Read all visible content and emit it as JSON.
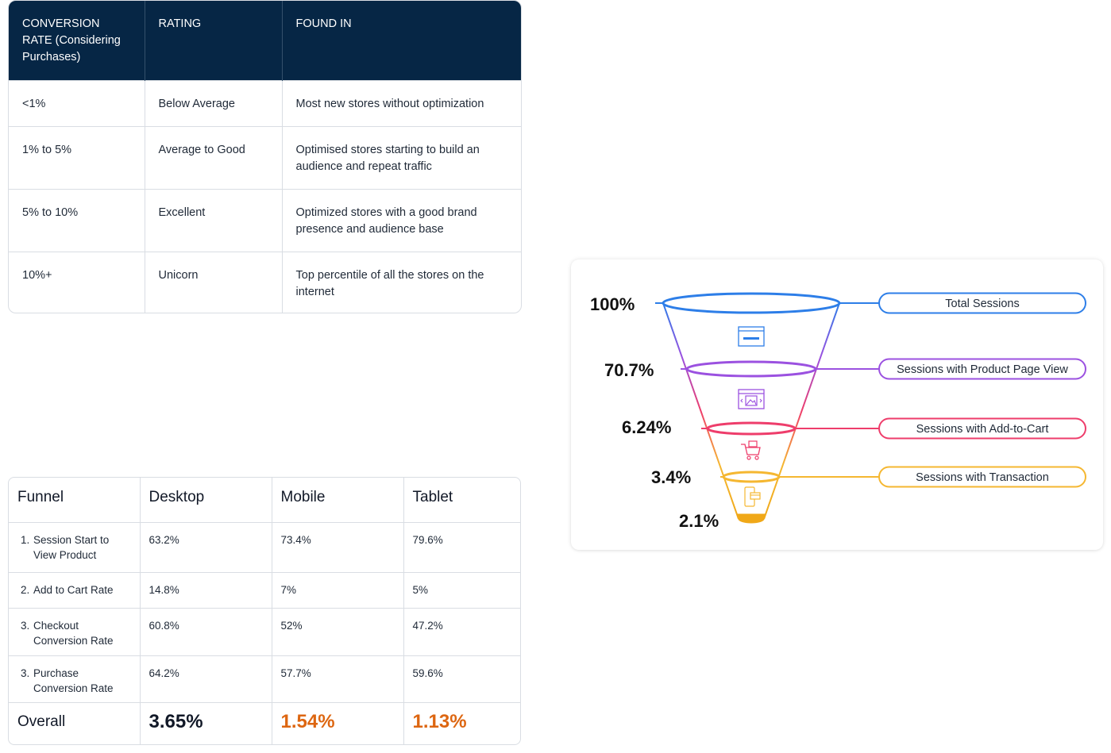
{
  "rates_table": {
    "headers": [
      "CONVERSION RATE (Considering Purchases)",
      "RATING",
      "FOUND IN"
    ],
    "rows": [
      {
        "rate": "<1%",
        "rating": "Below Average",
        "found_in": "Most new stores without optimization"
      },
      {
        "rate": "1% to 5%",
        "rating": "Average to Good",
        "found_in": "Optimised stores starting to build an audience and repeat traffic"
      },
      {
        "rate": "5% to 10%",
        "rating": "Excellent",
        "found_in": "Optimized stores with a good brand presence and audience base"
      },
      {
        "rate": "10%+",
        "rating": "Unicorn",
        "found_in": "Top percentile of all the stores on the internet"
      }
    ],
    "header_color": "#062645"
  },
  "funnel_table": {
    "headers": [
      "Funnel",
      "Desktop",
      "Mobile",
      "Tablet"
    ],
    "rows": [
      {
        "num": "1.",
        "stage": "Session Start to View Product",
        "desktop": "63.2%",
        "mobile": "73.4%",
        "tablet": "79.6%"
      },
      {
        "num": "2.",
        "stage": "Add to Cart Rate",
        "desktop": "14.8%",
        "mobile": "7%",
        "tablet": "5%"
      },
      {
        "num": "3.",
        "stage": "Checkout Conversion Rate",
        "desktop": "60.8%",
        "mobile": "52%",
        "tablet": "47.2%"
      },
      {
        "num": "3.",
        "stage": "Purchase Conversion Rate",
        "desktop": "64.2%",
        "mobile": "57.7%",
        "tablet": "59.6%"
      }
    ],
    "total": {
      "label": "Overall",
      "desktop": "3.65%",
      "mobile": "1.54%",
      "tablet": "1.13%"
    },
    "accent_color": "#dd6611"
  },
  "chart_data": {
    "type": "funnel",
    "stages": [
      {
        "name": "Total Sessions",
        "value": 100,
        "label": "100%",
        "color": "#2d7ee8",
        "icon": "browser-window-icon"
      },
      {
        "name": "Sessions with Product Page View",
        "value": 70.7,
        "label": "70.7%",
        "color": "#9b51e0",
        "icon": "product-image-icon"
      },
      {
        "name": "Sessions with Add-to-Cart",
        "value": 6.24,
        "label": "6.24%",
        "color": "#ee3d6b",
        "icon": "shopping-cart-icon"
      },
      {
        "name": "Sessions with Transaction",
        "value": 3.4,
        "label": "3.4%",
        "color": "#f5b731",
        "icon": "payment-device-icon"
      }
    ],
    "final": {
      "value": 2.1,
      "label": "2.1%",
      "color": "#f0a818"
    }
  }
}
